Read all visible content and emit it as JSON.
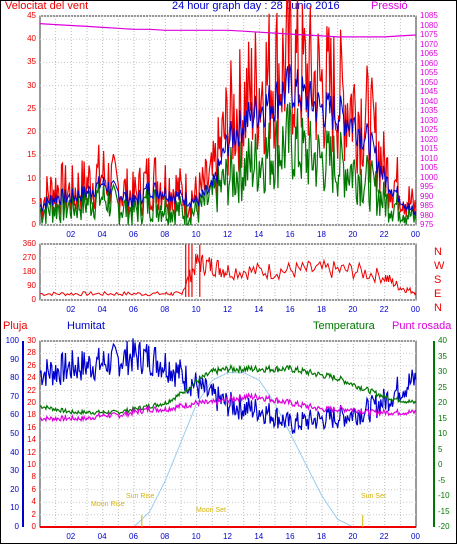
{
  "header": {
    "left_label": "Velocitat del vent",
    "title": "24 hour graph day : 28 Junio 2016",
    "right_label": "Pressió"
  },
  "colors": {
    "red": "#ee0000",
    "blue": "#0000cc",
    "green": "#007700",
    "magenta": "#dd00dd",
    "lightblue": "#99ccee",
    "yellow": "#d4b400",
    "black": "#000000"
  },
  "panel1": {
    "left_ticks": [
      "45",
      "40",
      "35",
      "30",
      "25",
      "20",
      "15",
      "10",
      "5",
      "0"
    ],
    "right_ticks": [
      "1085",
      "1080",
      "1075",
      "1070",
      "1065",
      "1060",
      "1055",
      "1050",
      "1045",
      "1040",
      "1035",
      "1030",
      "1025",
      "1020",
      "1015",
      "1010",
      "1005",
      "1000",
      "995",
      "990",
      "985",
      "980",
      "975"
    ]
  },
  "panel2": {
    "left_ticks": [
      "360",
      "270",
      "180",
      "90",
      "0"
    ],
    "compass": [
      "N",
      "W",
      "S",
      "E",
      "N"
    ]
  },
  "panel3": {
    "labels": {
      "pluja": "Pluja",
      "humitat": "Humitat",
      "temperatura": "Temperatura",
      "punt_rosada": "Punt rosada"
    },
    "rain_ticks": [
      "30",
      "28",
      "26",
      "24",
      "22",
      "20",
      "18",
      "16",
      "14",
      "12",
      "10",
      "8",
      "6",
      "4",
      "2",
      "0"
    ],
    "hum_ticks": [
      "100",
      "90",
      "80",
      "70",
      "60",
      "50",
      "40",
      "30",
      "20",
      "10",
      "0"
    ],
    "temp_ticks": [
      "40",
      "35",
      "30",
      "25",
      "20",
      "15",
      "10",
      "5",
      "0",
      "-5",
      "-10",
      "-15",
      "-20"
    ],
    "annotations": {
      "sun_rise": "Sun Rise",
      "sun_set": "Sun Set",
      "moon_rise": "Moon Rise",
      "moon_set": "Moon Set"
    }
  },
  "x_ticks": [
    "02",
    "04",
    "06",
    "08",
    "10",
    "12",
    "14",
    "16",
    "18",
    "20",
    "22",
    "00"
  ],
  "chart_data": [
    {
      "type": "line",
      "title": "24 hour graph day : 28 Junio 2016",
      "ylabel": "Velocitat del vent",
      "y2label": "Pressió",
      "x_hours": [
        0,
        1,
        2,
        3,
        4,
        5,
        6,
        7,
        8,
        9,
        10,
        11,
        12,
        13,
        14,
        15,
        16,
        17,
        18,
        19,
        20,
        21,
        22,
        23,
        24
      ],
      "ylim": [
        0,
        45
      ],
      "y2lim": [
        975,
        1085
      ],
      "series": [
        {
          "name": "gust",
          "values": [
            5,
            8,
            7,
            9,
            11,
            8,
            6,
            10,
            9,
            7,
            6,
            10,
            22,
            26,
            30,
            33,
            35,
            32,
            30,
            28,
            26,
            22,
            12,
            8,
            3
          ]
        },
        {
          "name": "average",
          "values": [
            4,
            6,
            6,
            7,
            9,
            7,
            5,
            8,
            7,
            6,
            5,
            8,
            18,
            22,
            25,
            27,
            30,
            27,
            25,
            24,
            22,
            18,
            10,
            6,
            2
          ]
        },
        {
          "name": "speed",
          "values": [
            3,
            4,
            4,
            5,
            6,
            4,
            3,
            5,
            4,
            3,
            3,
            6,
            10,
            12,
            14,
            16,
            18,
            15,
            14,
            13,
            12,
            9,
            5,
            4,
            1
          ]
        },
        {
          "name": "pressure",
          "values": [
            1081,
            1080.5,
            1080,
            1079.5,
            1079,
            1078.5,
            1078,
            1078,
            1077.5,
            1077.5,
            1077.5,
            1077.5,
            1077.5,
            1077,
            1076.5,
            1076,
            1075.5,
            1075,
            1074.5,
            1074,
            1074,
            1074,
            1074,
            1074.5,
            1075
          ]
        }
      ]
    },
    {
      "type": "scatter",
      "ylabel": "Wind direction",
      "x_hours": [
        0,
        2,
        4,
        6,
        8,
        9,
        10,
        11,
        12,
        14,
        16,
        18,
        20,
        22,
        23,
        24
      ],
      "ylim": [
        0,
        360
      ],
      "values": [
        40,
        40,
        40,
        40,
        40,
        40,
        240,
        220,
        190,
        185,
        190,
        195,
        190,
        150,
        80,
        50
      ]
    },
    {
      "type": "line",
      "x_hours": [
        0,
        1,
        2,
        3,
        4,
        5,
        6,
        7,
        8,
        9,
        10,
        11,
        12,
        13,
        14,
        15,
        16,
        17,
        18,
        19,
        20,
        21,
        22,
        23,
        24
      ],
      "ylim_humidity": [
        0,
        100
      ],
      "ylim_temperature": [
        -20,
        40
      ],
      "ylim_rain": [
        0,
        30
      ],
      "series": [
        {
          "name": "Humitat",
          "values": [
            83,
            84,
            86,
            87,
            88,
            90,
            92,
            91,
            88,
            82,
            76,
            70,
            66,
            64,
            63,
            60,
            55,
            57,
            58,
            59,
            61,
            63,
            68,
            75,
            79
          ]
        },
        {
          "name": "Temperatura",
          "values": [
            19,
            18,
            17,
            17,
            17,
            17,
            18,
            19,
            20,
            23,
            27,
            30,
            31,
            31,
            31,
            31,
            31,
            30,
            29,
            28,
            26,
            24,
            22,
            21,
            20
          ]
        },
        {
          "name": "Punt rosada",
          "values": [
            15,
            15,
            15,
            15,
            16,
            16,
            17,
            18,
            18,
            19,
            20,
            20,
            21,
            22,
            22,
            21,
            20,
            19,
            18,
            18,
            18,
            17,
            17,
            17,
            17
          ]
        },
        {
          "name": "Pluja",
          "values": [
            0,
            0,
            0,
            0,
            0,
            0,
            0,
            0,
            0,
            0,
            0,
            0,
            0,
            0,
            0,
            0,
            0,
            0,
            0,
            0,
            0,
            0,
            0,
            0,
            0
          ]
        },
        {
          "name": "Solar",
          "values": [
            0,
            0,
            0,
            0,
            0,
            0,
            0,
            10,
            30,
            55,
            80,
            95,
            100,
            100,
            95,
            80,
            60,
            40,
            20,
            5,
            0,
            0,
            0,
            0,
            0
          ]
        }
      ]
    }
  ]
}
